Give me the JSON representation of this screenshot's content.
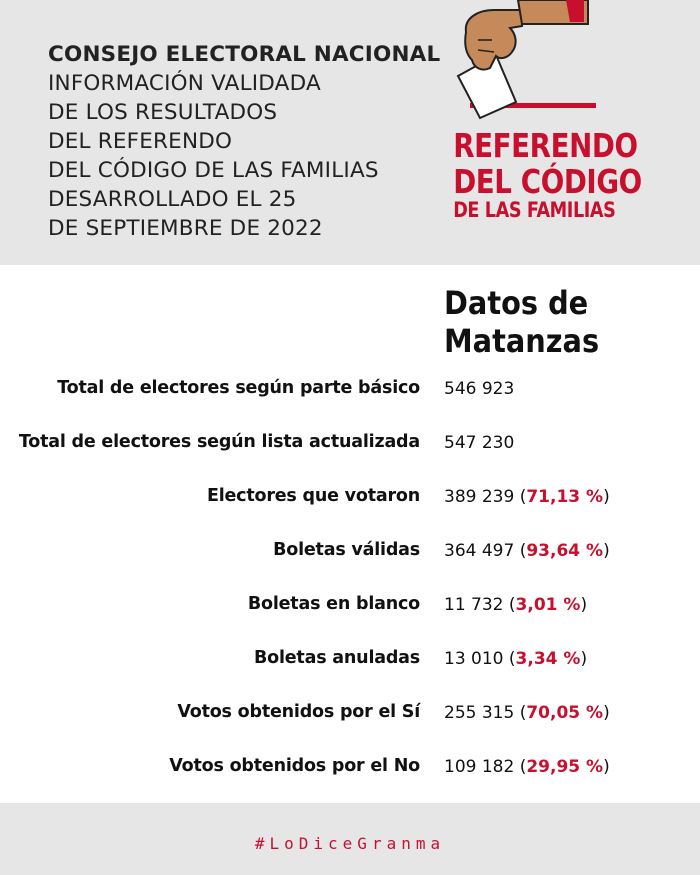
{
  "header": {
    "lines": [
      "CONSEJO ELECTORAL NACIONAL",
      "INFORMACIÓN VALIDADA",
      "DE LOS RESULTADOS",
      "DEL REFERENDO",
      "DEL CÓDIGO DE LAS FAMILIAS",
      "DESARROLLADO EL 25",
      "DE SEPTIEMBRE DE 2022"
    ]
  },
  "logo": {
    "line1": "REFERENDO",
    "line2": "DEL CÓDIGO",
    "line3": "DE LAS FAMILIAS"
  },
  "section": {
    "title_line1": "Datos de",
    "title_line2": "Matanzas"
  },
  "rows": [
    {
      "label": "Total de electores según parte básico",
      "value": "546 923",
      "open": "",
      "pct": "",
      "close": ""
    },
    {
      "label": "Total de electores según lista actualizada",
      "value": "547 230",
      "open": "",
      "pct": "",
      "close": ""
    },
    {
      "label": "Electores que votaron",
      "value": "389 239 ",
      "open": "(",
      "pct": "71,13 %",
      "close": ")"
    },
    {
      "label": "Boletas válidas",
      "value": "364 497 ",
      "open": "(",
      "pct": "93,64 %",
      "close": ")"
    },
    {
      "label": "Boletas en blanco",
      "value": "11 732 ",
      "open": "(",
      "pct": "3,01 %",
      "close": ")"
    },
    {
      "label": "Boletas anuladas",
      "value": "13 010 ",
      "open": "(",
      "pct": "3,34 %",
      "close": ")"
    },
    {
      "label": "Votos obtenidos por el Sí",
      "value": "255 315 ",
      "open": "(",
      "pct": "70,05 %",
      "close": ")"
    },
    {
      "label": "Votos obtenidos por el No",
      "value": "109 182 ",
      "open": "(",
      "pct": "29,95 %",
      "close": ")"
    }
  ],
  "footer": {
    "hashtag": "#LoDiceGranma"
  },
  "colors": {
    "accent": "#c8102e",
    "header_bg": "#e6e6e6",
    "skin": "#c68a5a"
  }
}
